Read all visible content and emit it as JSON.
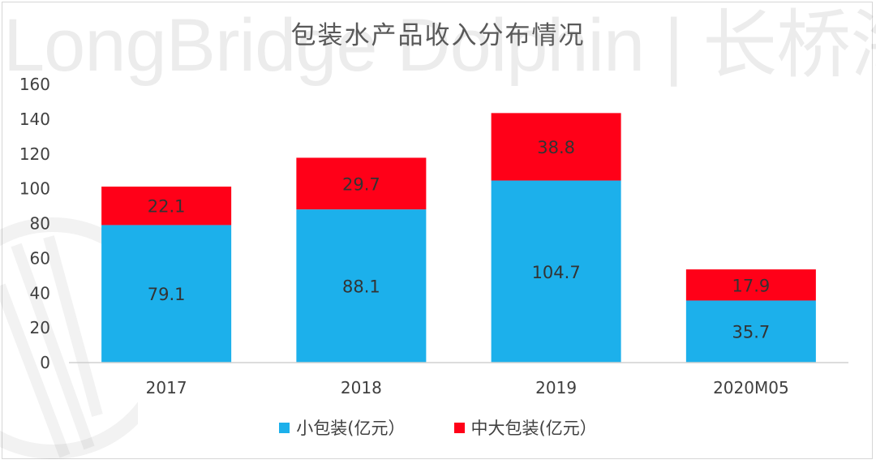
{
  "watermark": {
    "text": "LongBridge Dolphin | 长桥海豚投研"
  },
  "chart_data": {
    "type": "bar",
    "stacked": true,
    "title": "包装水产品收入分布情况",
    "xlabel": "",
    "ylabel": "",
    "categories": [
      "2017",
      "2018",
      "2019",
      "2020M05"
    ],
    "series": [
      {
        "name": "小包装(亿元）",
        "color": "#1CB0EB",
        "values": [
          79.1,
          88.1,
          104.7,
          35.7
        ]
      },
      {
        "name": "中大包装(亿元）",
        "color": "#FF0018",
        "values": [
          22.1,
          29.7,
          38.8,
          17.9
        ]
      }
    ],
    "ylim": [
      0,
      160
    ],
    "yticks": [
      "0",
      "20",
      "40",
      "60",
      "80",
      "100",
      "120",
      "140",
      "160"
    ],
    "grid": false,
    "legend_position": "bottom"
  }
}
